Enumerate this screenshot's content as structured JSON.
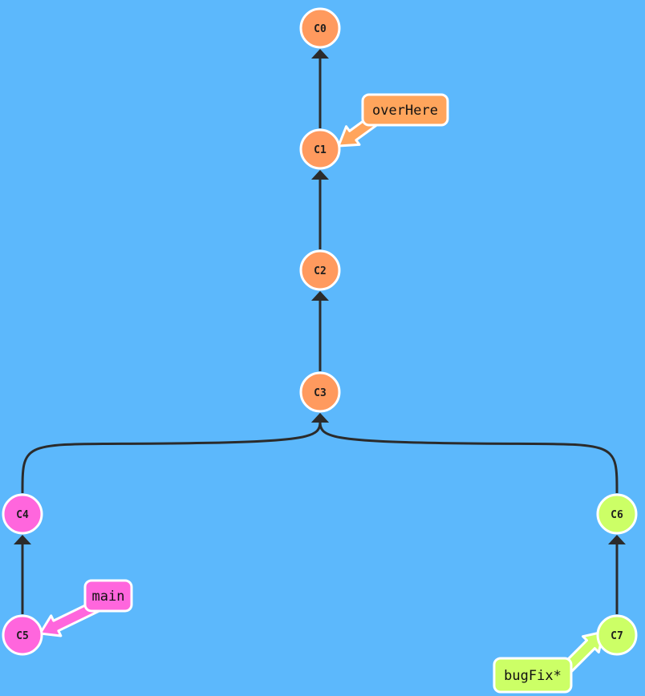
{
  "graph": {
    "commits": [
      {
        "id": "C0",
        "color": "#ff9a5e"
      },
      {
        "id": "C1",
        "color": "#ff9a5e"
      },
      {
        "id": "C2",
        "color": "#ff9a5e"
      },
      {
        "id": "C3",
        "color": "#ff9a5e"
      },
      {
        "id": "C4",
        "color": "#ff66dd"
      },
      {
        "id": "C5",
        "color": "#ff66dd"
      },
      {
        "id": "C6",
        "color": "#ccff66"
      },
      {
        "id": "C7",
        "color": "#ccff66"
      }
    ],
    "edges": [
      {
        "child": "C1",
        "parent": "C0"
      },
      {
        "child": "C2",
        "parent": "C1"
      },
      {
        "child": "C3",
        "parent": "C2"
      },
      {
        "child": "C4",
        "parent": "C3"
      },
      {
        "child": "C6",
        "parent": "C3"
      },
      {
        "child": "C5",
        "parent": "C4"
      },
      {
        "child": "C7",
        "parent": "C6"
      }
    ],
    "branches": [
      {
        "name": "overHere",
        "target": "C1",
        "color": "#ffa55c"
      },
      {
        "name": "main",
        "target": "C5",
        "color": "#ff66dd"
      },
      {
        "name": "bugFix*",
        "target": "C7",
        "color": "#ccff66"
      }
    ],
    "colors": {
      "background": "#5cb8fc",
      "edge": "#2b2b2b",
      "node_stroke": "#ffffff"
    }
  }
}
